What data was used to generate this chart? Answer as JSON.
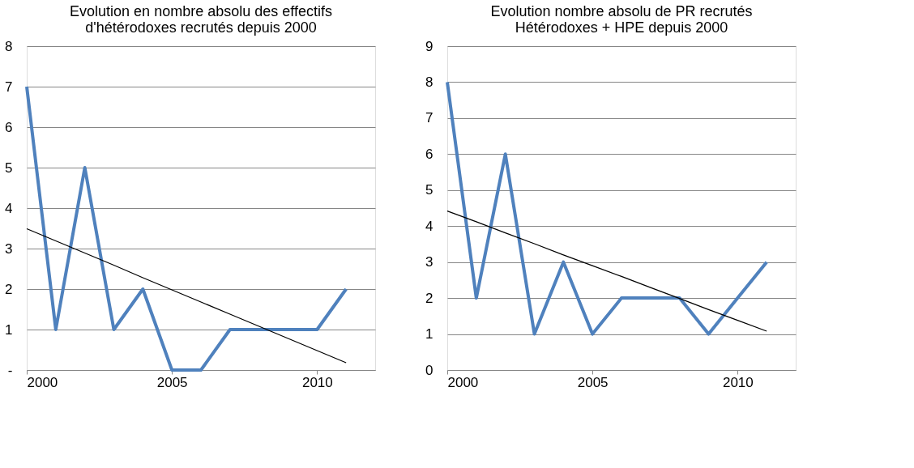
{
  "chart_data": [
    {
      "type": "line",
      "title": "Evolution en nombre absolu des effectifs\nd'hétérodoxes recrutés depuis 2000",
      "x": [
        2000,
        2001,
        2002,
        2003,
        2004,
        2005,
        2006,
        2007,
        2008,
        2009,
        2010,
        2011
      ],
      "series": [
        {
          "color": "#4f81bd",
          "values": [
            7,
            1,
            5,
            1,
            2,
            0,
            0,
            1,
            1,
            1,
            1,
            2
          ]
        },
        {
          "type": "line",
          "color": "#000000",
          "values": [
            3.49,
            3.19,
            2.89,
            2.59,
            2.28,
            1.98,
            1.68,
            1.38,
            1.08,
            0.78,
            0.48,
            0.18
          ]
        }
      ],
      "xlim": [
        2000,
        2012
      ],
      "xticks": [
        2000,
        2005,
        2010
      ],
      "ylim": [
        0,
        8
      ],
      "yticks": [
        {
          "value": 0,
          "label": "-"
        },
        1,
        2,
        3,
        4,
        5,
        6,
        7,
        8
      ],
      "grid": "y",
      "marker": "none",
      "line_style": "solid"
    },
    {
      "type": "line",
      "title": "Evolution nombre absolu de PR recrutés\nHétérodoxes + HPE depuis 2000",
      "x": [
        2000,
        2001,
        2002,
        2003,
        2004,
        2005,
        2006,
        2007,
        2008,
        2009,
        2010,
        2011
      ],
      "series": [
        {
          "color": "#4f81bd",
          "values": [
            8,
            2,
            6,
            1,
            3,
            1,
            2,
            2,
            2,
            1,
            2,
            3
          ]
        },
        {
          "type": "line",
          "color": "#000000",
          "values": [
            4.42,
            4.12,
            3.81,
            3.51,
            3.2,
            2.9,
            2.6,
            2.29,
            1.99,
            1.68,
            1.38,
            1.08
          ]
        }
      ],
      "xlim": [
        2000,
        2012
      ],
      "xticks": [
        2000,
        2005,
        2010
      ],
      "ylim": [
        0,
        9
      ],
      "yticks": [
        0,
        1,
        2,
        3,
        4,
        5,
        6,
        7,
        8,
        9
      ],
      "grid": "y",
      "marker": "none",
      "line_style": "solid"
    }
  ]
}
